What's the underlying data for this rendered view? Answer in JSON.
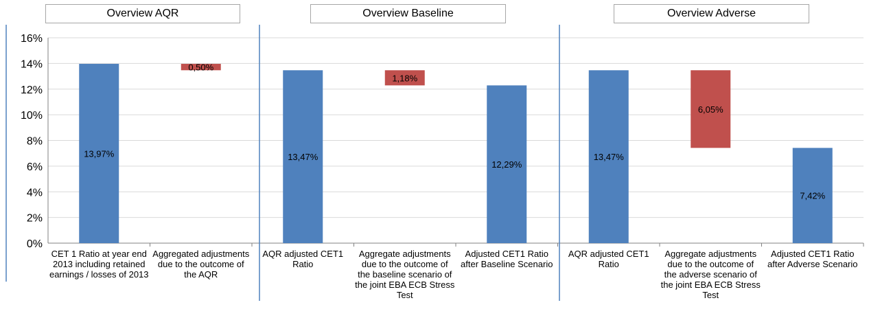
{
  "headers": [
    "Overview AQR",
    "Overview Baseline",
    "Overview Adverse"
  ],
  "colors": {
    "increase": "#4f81bd",
    "decrease": "#c0504d",
    "grid": "#d9d9d9",
    "divider": "#4f81bd"
  },
  "chart_data": {
    "type": "bar",
    "subtype": "waterfall",
    "ylim": [
      0,
      16
    ],
    "yticks": [
      "0%",
      "2%",
      "4%",
      "6%",
      "8%",
      "10%",
      "12%",
      "14%",
      "16%"
    ],
    "grid": true,
    "legend": "none",
    "categories": [
      "CET 1 Ratio at year end 2013 including retained earnings / losses of 2013",
      "Aggregated adjustments due to the outcome of the AQR",
      "AQR adjusted CET1 Ratio",
      "Aggregate adjustments due to the outcome of the baseline scenario of the joint EBA ECB Stress Test",
      "Adjusted CET1 Ratio after Baseline Scenario",
      "AQR adjusted CET1 Ratio",
      "Aggregate adjustments due to the outcome of the adverse scenario of the joint EBA ECB Stress Test",
      "Adjusted CET1 Ratio after Adverse Scenario"
    ],
    "bars": [
      {
        "kind": "total",
        "bottom": 0,
        "top": 13.97,
        "label": "13,97%"
      },
      {
        "kind": "decrease",
        "bottom": 13.47,
        "top": 13.97,
        "label": "0,50%"
      },
      {
        "kind": "total",
        "bottom": 0,
        "top": 13.47,
        "label": "13,47%"
      },
      {
        "kind": "decrease",
        "bottom": 12.29,
        "top": 13.47,
        "label": "1,18%"
      },
      {
        "kind": "total",
        "bottom": 0,
        "top": 12.29,
        "label": "12,29%"
      },
      {
        "kind": "total",
        "bottom": 0,
        "top": 13.47,
        "label": "13,47%"
      },
      {
        "kind": "decrease",
        "bottom": 7.42,
        "top": 13.47,
        "label": "6,05%"
      },
      {
        "kind": "total",
        "bottom": 0,
        "top": 7.42,
        "label": "7,42%"
      }
    ]
  }
}
